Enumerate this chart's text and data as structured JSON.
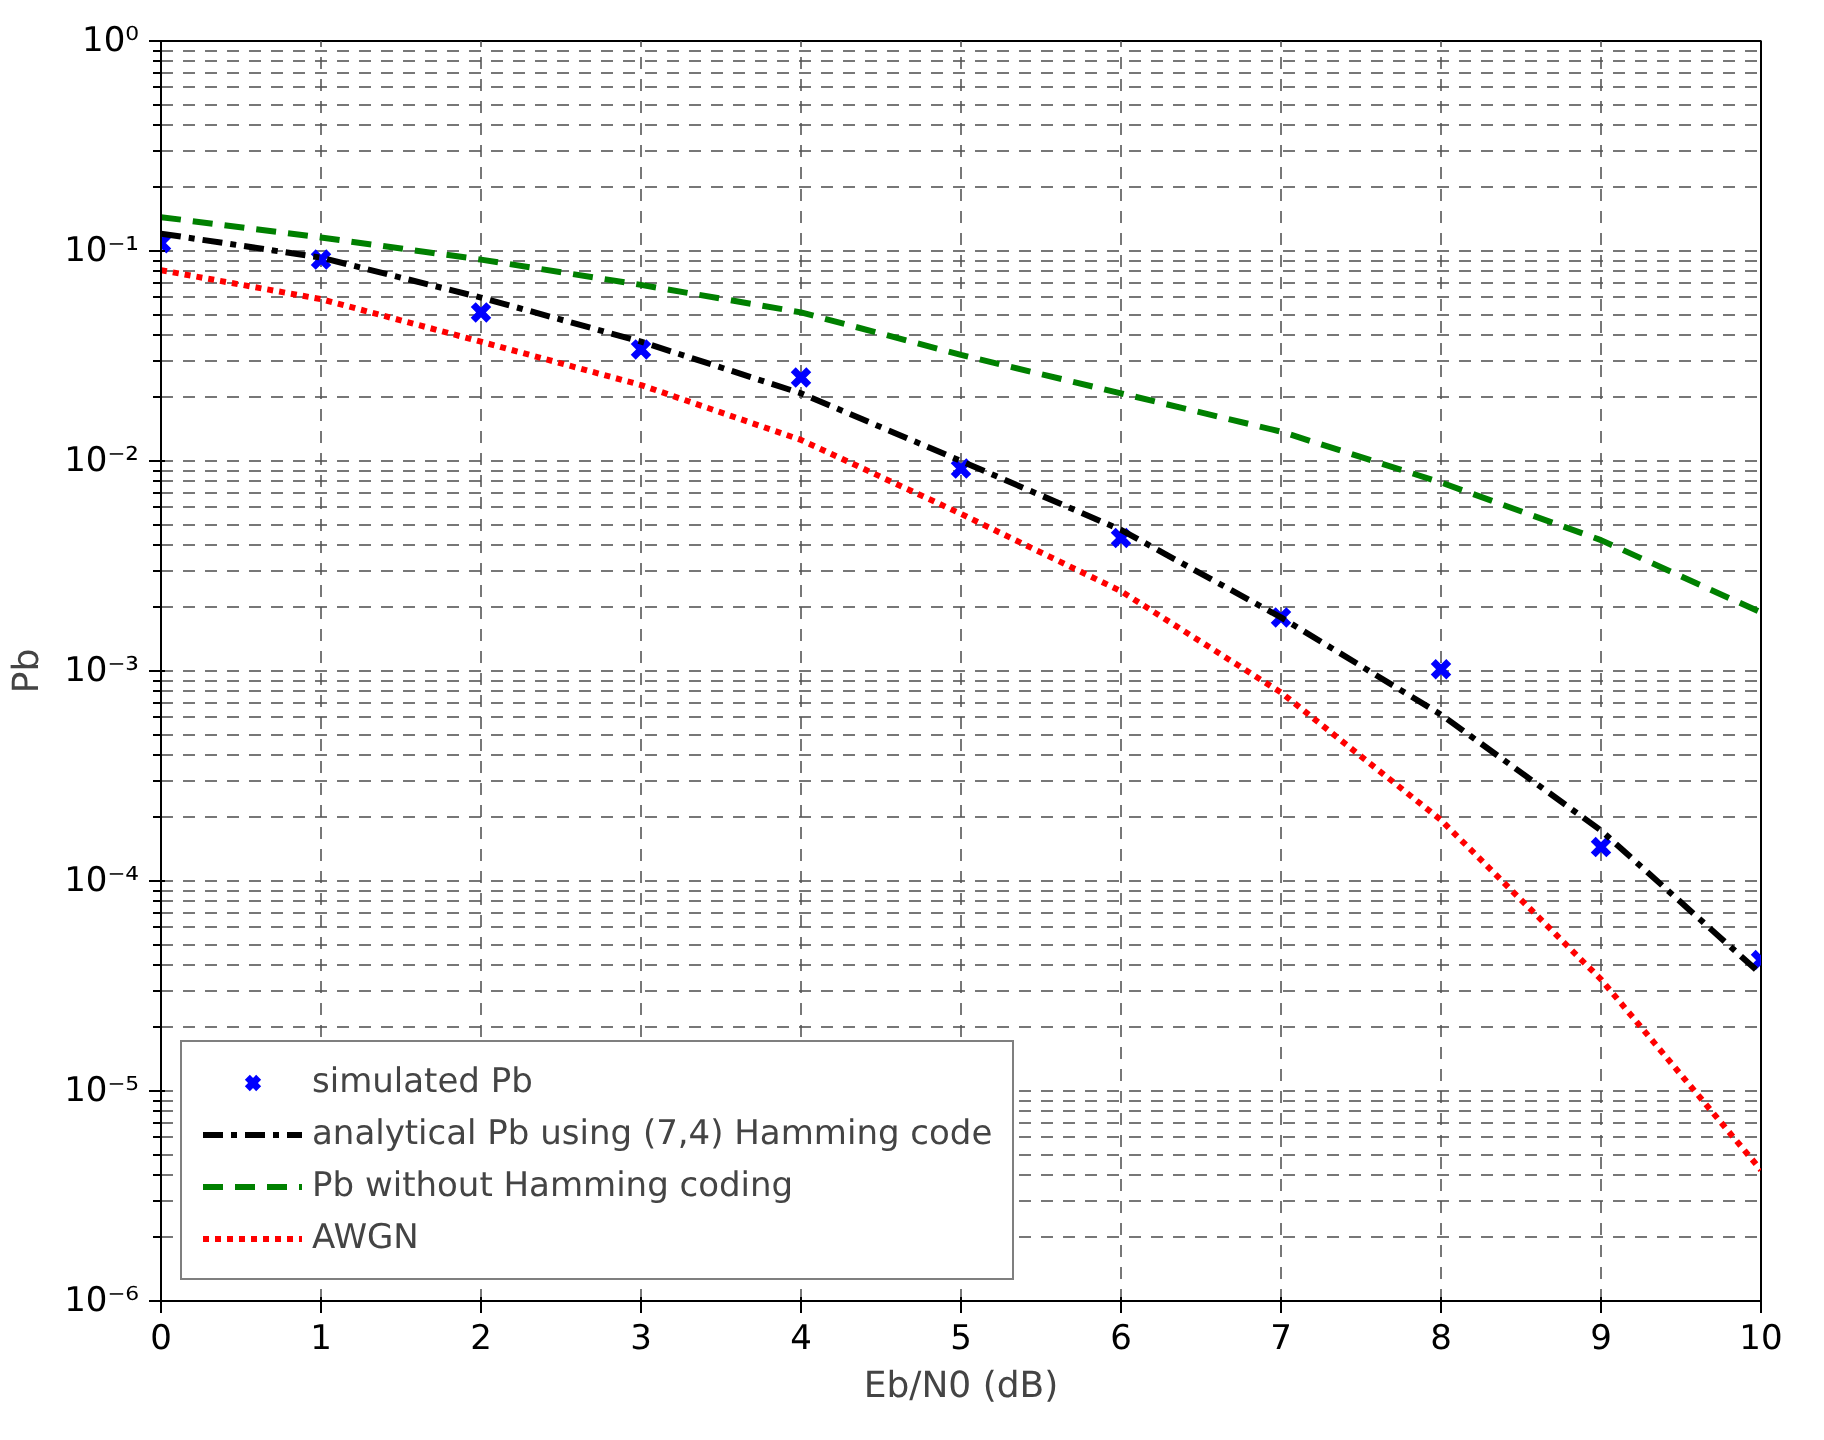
{
  "chart_data": {
    "type": "line",
    "xlabel": "Eb/N0 (dB)",
    "ylabel": "Pb",
    "log": "y",
    "grid": true,
    "legend": "bottom left",
    "x": [
      0,
      1,
      2,
      3,
      4,
      5,
      6,
      7,
      8,
      9,
      10
    ],
    "xlim": [
      0,
      10
    ],
    "xticks": [
      0,
      1,
      2,
      3,
      4,
      5,
      6,
      7,
      8,
      9,
      10
    ],
    "ylim": [
      1e-06,
      1
    ],
    "yticks": [
      {
        "value": 1e-06,
        "label": "10⁻⁶"
      },
      {
        "value": 1e-05,
        "label": "10⁻⁵"
      },
      {
        "value": 0.0001,
        "label": "10⁻⁴"
      },
      {
        "value": 0.001,
        "label": "10⁻³"
      },
      {
        "value": 0.01,
        "label": "10⁻²"
      },
      {
        "value": 0.1,
        "label": "10⁻¹"
      },
      {
        "value": 1,
        "label": "10⁰"
      }
    ],
    "series": [
      {
        "name": "simulated Pb",
        "type": "scatter",
        "marker": "cross",
        "color": "#0000ff",
        "values": [
          0.109,
          0.091,
          0.051,
          0.034,
          0.025,
          0.0092,
          0.0043,
          0.0018,
          0.00102,
          0.000145,
          4.2e-05
        ]
      },
      {
        "name": "analytical Pb using (7,4) Hamming code",
        "line_style": "dashdot",
        "color": "#000000",
        "values": [
          0.121,
          0.093,
          0.06,
          0.037,
          0.021,
          0.01,
          0.0047,
          0.0018,
          0.00062,
          0.000174,
          3.6e-05
        ]
      },
      {
        "name": "Pb without Hamming coding",
        "line_style": "dashed",
        "color": "#008000",
        "values": [
          0.145,
          0.116,
          0.091,
          0.069,
          0.051,
          0.032,
          0.021,
          0.0138,
          0.0079,
          0.0042,
          0.0019
        ]
      },
      {
        "name": "AWGN",
        "line_style": "dotted",
        "color": "#ff0000",
        "values": [
          0.081,
          0.059,
          0.037,
          0.023,
          0.0126,
          0.0056,
          0.0024,
          0.00079,
          0.000195,
          3.4e-05,
          4.2e-06
        ]
      }
    ]
  }
}
